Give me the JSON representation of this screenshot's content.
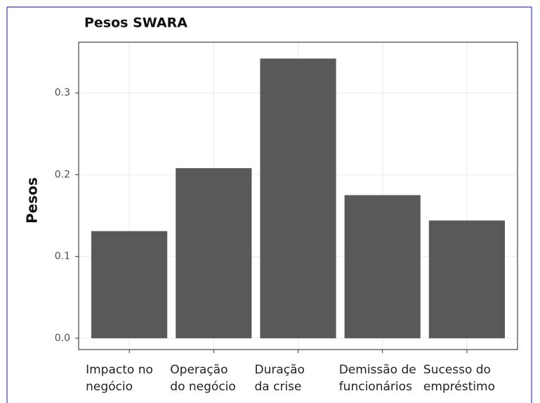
{
  "chart_data": {
    "type": "bar",
    "title": "Pesos SWARA",
    "y_label": "Pesos",
    "categories": [
      "Impacto no\nnegócio",
      "Operação\ndo negócio",
      "Duração\nda crise",
      "Demissão de\nfuncionários",
      "Sucesso do\nempréstimo"
    ],
    "values": [
      0.131,
      0.208,
      0.342,
      0.175,
      0.144
    ],
    "color": "#595959",
    "ylim": [
      -0.0138,
      0.362
    ],
    "yticks": [
      {
        "value": 0,
        "label": "0.0"
      },
      0.1,
      0.2,
      0.3
    ],
    "grid": true
  }
}
